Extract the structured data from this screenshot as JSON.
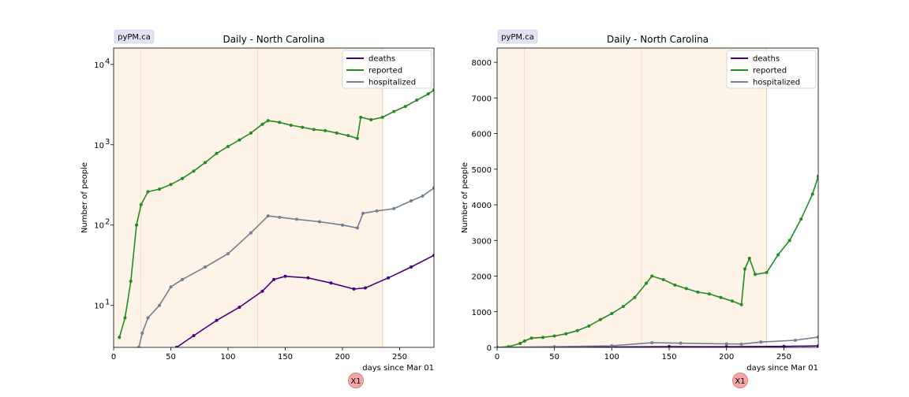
{
  "figure": {
    "badge": "pyPM.ca",
    "button_label": "X1",
    "colors": {
      "deaths": "#4b0082",
      "reported": "#228b22",
      "hospitalized": "#708090",
      "period_fill": "#fdf3e6",
      "period_line": "#e8cfa8"
    }
  },
  "chart_data": [
    {
      "type": "line",
      "title": "Daily - North Carolina",
      "xlabel": "days since Mar 01",
      "ylabel": "Number of people",
      "xlim": [
        0,
        280
      ],
      "ylim": [
        3,
        16000
      ],
      "yscale": "log",
      "xticks": [
        "0",
        "50",
        "100",
        "150",
        "200",
        "250"
      ],
      "yticks": [
        {
          "value": 10,
          "base": "10",
          "exp": "1"
        },
        {
          "value": 100,
          "base": "10",
          "exp": "2"
        },
        {
          "value": 1000,
          "base": "10",
          "exp": "3"
        },
        {
          "value": 10000,
          "base": "10",
          "exp": "4"
        }
      ],
      "grid": false,
      "legend_loc": "upper right",
      "periods": [
        0,
        24,
        126,
        235
      ],
      "series": [
        {
          "name": "deaths",
          "color": "#4b0082",
          "x": [
            55,
            70,
            90,
            110,
            130,
            140,
            150,
            170,
            190,
            210,
            220,
            240,
            260,
            280
          ],
          "y": [
            3,
            4.2,
            6.5,
            9.5,
            15,
            21,
            23,
            22,
            19,
            16,
            16.5,
            22,
            30,
            42
          ]
        },
        {
          "name": "reported",
          "color": "#228b22",
          "x": [
            5,
            10,
            15,
            20,
            24,
            30,
            40,
            50,
            60,
            70,
            80,
            90,
            100,
            110,
            120,
            130,
            135,
            145,
            155,
            165,
            175,
            185,
            195,
            205,
            213,
            216,
            225,
            235,
            245,
            255,
            265,
            275,
            280
          ],
          "y": [
            4,
            7,
            20,
            100,
            180,
            260,
            280,
            320,
            380,
            470,
            600,
            780,
            950,
            1150,
            1400,
            1800,
            2000,
            1900,
            1750,
            1650,
            1550,
            1500,
            1400,
            1300,
            1200,
            2200,
            2050,
            2200,
            2600,
            3000,
            3600,
            4300,
            4800
          ]
        },
        {
          "name": "hospitalized",
          "color": "#708090",
          "x": [
            22,
            25,
            30,
            40,
            50,
            60,
            80,
            100,
            120,
            135,
            145,
            160,
            180,
            200,
            213,
            218,
            230,
            245,
            260,
            270,
            280
          ],
          "y": [
            3,
            4.5,
            7,
            10,
            17,
            21,
            30,
            44,
            80,
            130,
            125,
            118,
            110,
            100,
            92,
            140,
            150,
            160,
            200,
            230,
            290
          ]
        }
      ]
    },
    {
      "type": "line",
      "title": "Daily - North Carolina",
      "xlabel": "days since Mar 01",
      "ylabel": "Number of people",
      "xlim": [
        0,
        280
      ],
      "ylim": [
        0,
        8400
      ],
      "yscale": "linear",
      "xticks": [
        "0",
        "50",
        "100",
        "150",
        "200",
        "250"
      ],
      "yticks": [
        "0",
        "1000",
        "2000",
        "3000",
        "4000",
        "5000",
        "6000",
        "7000",
        "8000"
      ],
      "grid": false,
      "legend_loc": "upper right",
      "periods": [
        0,
        24,
        126,
        235
      ],
      "series": [
        {
          "name": "deaths",
          "color": "#4b0082",
          "x": [
            0,
            50,
            100,
            150,
            200,
            250,
            280
          ],
          "y": [
            0,
            5,
            10,
            22,
            18,
            28,
            42
          ]
        },
        {
          "name": "reported",
          "color": "#228b22",
          "x": [
            0,
            10,
            20,
            24,
            30,
            40,
            50,
            60,
            70,
            80,
            90,
            100,
            110,
            120,
            130,
            135,
            145,
            155,
            165,
            175,
            185,
            195,
            205,
            213,
            216,
            220,
            225,
            235,
            245,
            255,
            265,
            275,
            280
          ],
          "y": [
            0,
            20,
            110,
            180,
            260,
            280,
            320,
            380,
            470,
            600,
            780,
            950,
            1150,
            1400,
            1800,
            2000,
            1900,
            1750,
            1650,
            1550,
            1500,
            1400,
            1300,
            1200,
            2200,
            2500,
            2050,
            2100,
            2600,
            3000,
            3600,
            4300,
            4800
          ]
        },
        {
          "name": "hospitalized",
          "color": "#708090",
          "x": [
            0,
            50,
            100,
            135,
            160,
            200,
            213,
            230,
            260,
            280
          ],
          "y": [
            0,
            17,
            44,
            130,
            118,
            100,
            92,
            150,
            200,
            290
          ]
        }
      ]
    }
  ]
}
